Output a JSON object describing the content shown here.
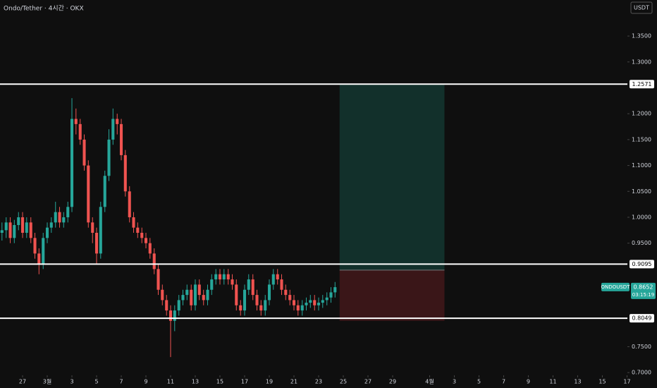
{
  "chart_data": {
    "type": "candlestick",
    "title": "Ondo/Tether · 4시간 · OKX",
    "currency": "USDT",
    "colors": {
      "up": "#26a69a",
      "down": "#ef5350"
    },
    "xlim": [
      0.17,
      51.03
    ],
    "ylim": [
      0.6948,
      1.4196
    ],
    "yticks": [
      {
        "value": 1.35,
        "label": "1.3500"
      },
      {
        "value": 1.3,
        "label": "1.3000"
      },
      {
        "value": 1.2,
        "label": "1.2000"
      },
      {
        "value": 1.15,
        "label": "1.1500"
      },
      {
        "value": 1.1,
        "label": "1.1000"
      },
      {
        "value": 1.05,
        "label": "1.0500"
      },
      {
        "value": 1.0,
        "label": "1.0000"
      },
      {
        "value": 0.95,
        "label": "0.9500"
      },
      {
        "value": 0.75,
        "label": "0.7500"
      },
      {
        "value": 0.7,
        "label": "0.7000"
      }
    ],
    "xticks": [
      {
        "value": 2,
        "label": "27"
      },
      {
        "value": 4,
        "label": "3월"
      },
      {
        "value": 6,
        "label": "3"
      },
      {
        "value": 8,
        "label": "5"
      },
      {
        "value": 10,
        "label": "7"
      },
      {
        "value": 12,
        "label": "9"
      },
      {
        "value": 14,
        "label": "11"
      },
      {
        "value": 16,
        "label": "13"
      },
      {
        "value": 18,
        "label": "15"
      },
      {
        "value": 20,
        "label": "17"
      },
      {
        "value": 22,
        "label": "19"
      },
      {
        "value": 24,
        "label": "21"
      },
      {
        "value": 26,
        "label": "23"
      },
      {
        "value": 28,
        "label": "25"
      },
      {
        "value": 30,
        "label": "27"
      },
      {
        "value": 32,
        "label": "29"
      },
      {
        "value": 35,
        "label": "4월"
      },
      {
        "value": 37,
        "label": "3"
      },
      {
        "value": 39,
        "label": "5"
      },
      {
        "value": 41,
        "label": "7"
      },
      {
        "value": 43,
        "label": "9"
      },
      {
        "value": 45,
        "label": "11"
      },
      {
        "value": 47,
        "label": "13"
      },
      {
        "value": 49,
        "label": "15"
      },
      {
        "value": 51,
        "label": "17"
      }
    ],
    "x": [
      0.33,
      0.67,
      1,
      1.33,
      1.67,
      2,
      2.33,
      2.67,
      3,
      3.33,
      3.67,
      4,
      4.33,
      4.67,
      5,
      5.33,
      5.67,
      6,
      6.33,
      6.67,
      7,
      7.33,
      7.67,
      8,
      8.33,
      8.67,
      9,
      9.33,
      9.67,
      10,
      10.33,
      10.67,
      11,
      11.33,
      11.67,
      12,
      12.33,
      12.67,
      13,
      13.33,
      13.67,
      14,
      14.33,
      14.67,
      15,
      15.33,
      15.67,
      16,
      16.33,
      16.67,
      17,
      17.33,
      17.67,
      18,
      18.33,
      18.67,
      19,
      19.33,
      19.67,
      20,
      20.33,
      20.67,
      21,
      21.33,
      21.67,
      22,
      22.33,
      22.67,
      23,
      23.33,
      23.67,
      24,
      24.33,
      24.67,
      25,
      25.33,
      25.67,
      26,
      26.33,
      26.67,
      27,
      27.33
    ],
    "open": [
      0.97,
      0.975,
      0.99,
      0.96,
      0.985,
      1.0,
      0.97,
      0.99,
      0.96,
      0.93,
      0.91,
      0.96,
      0.98,
      0.99,
      1.01,
      0.99,
      1.0,
      1.02,
      1.19,
      1.18,
      1.15,
      1.1,
      0.99,
      0.97,
      0.93,
      1.02,
      1.08,
      1.15,
      1.19,
      1.18,
      1.12,
      1.05,
      1.0,
      0.98,
      0.97,
      0.96,
      0.95,
      0.93,
      0.9,
      0.86,
      0.84,
      0.82,
      0.8,
      0.82,
      0.84,
      0.85,
      0.86,
      0.83,
      0.87,
      0.85,
      0.84,
      0.86,
      0.88,
      0.89,
      0.88,
      0.89,
      0.88,
      0.87,
      0.83,
      0.82,
      0.86,
      0.88,
      0.85,
      0.83,
      0.82,
      0.84,
      0.87,
      0.89,
      0.88,
      0.86,
      0.85,
      0.84,
      0.83,
      0.82,
      0.83,
      0.835,
      0.84,
      0.83,
      0.835,
      0.84,
      0.845,
      0.855
    ],
    "close": [
      0.975,
      0.99,
      0.96,
      0.985,
      1.0,
      0.97,
      0.99,
      0.96,
      0.93,
      0.91,
      0.96,
      0.98,
      0.99,
      1.01,
      0.99,
      1.0,
      1.02,
      1.19,
      1.18,
      1.15,
      1.1,
      0.99,
      0.97,
      0.93,
      1.02,
      1.08,
      1.15,
      1.19,
      1.18,
      1.12,
      1.05,
      1.0,
      0.98,
      0.97,
      0.96,
      0.95,
      0.93,
      0.9,
      0.86,
      0.84,
      0.82,
      0.8,
      0.82,
      0.84,
      0.85,
      0.86,
      0.83,
      0.87,
      0.85,
      0.84,
      0.86,
      0.88,
      0.89,
      0.88,
      0.89,
      0.88,
      0.87,
      0.83,
      0.82,
      0.86,
      0.88,
      0.85,
      0.83,
      0.82,
      0.84,
      0.87,
      0.89,
      0.88,
      0.86,
      0.85,
      0.84,
      0.83,
      0.82,
      0.83,
      0.835,
      0.84,
      0.83,
      0.835,
      0.84,
      0.845,
      0.855,
      0.865
    ],
    "high": [
      0.99,
      1.0,
      1.0,
      0.995,
      1.01,
      1.01,
      1.0,
      1.0,
      0.97,
      0.94,
      0.97,
      0.99,
      1.0,
      1.03,
      1.02,
      1.01,
      1.03,
      1.23,
      1.21,
      1.19,
      1.16,
      1.11,
      1.0,
      0.98,
      1.03,
      1.09,
      1.17,
      1.21,
      1.2,
      1.19,
      1.13,
      1.06,
      1.01,
      0.99,
      0.98,
      0.97,
      0.96,
      0.94,
      0.91,
      0.87,
      0.85,
      0.83,
      0.83,
      0.85,
      0.86,
      0.87,
      0.87,
      0.88,
      0.88,
      0.86,
      0.87,
      0.89,
      0.9,
      0.9,
      0.9,
      0.9,
      0.89,
      0.88,
      0.84,
      0.87,
      0.89,
      0.89,
      0.86,
      0.84,
      0.85,
      0.88,
      0.9,
      0.9,
      0.89,
      0.87,
      0.86,
      0.85,
      0.84,
      0.84,
      0.845,
      0.85,
      0.85,
      0.845,
      0.85,
      0.855,
      0.865,
      0.875
    ],
    "low": [
      0.955,
      0.96,
      0.95,
      0.95,
      0.975,
      0.96,
      0.96,
      0.95,
      0.92,
      0.89,
      0.9,
      0.95,
      0.97,
      0.98,
      0.98,
      0.98,
      0.99,
      1.01,
      1.16,
      1.14,
      1.09,
      0.98,
      0.95,
      0.91,
      0.92,
      1.01,
      1.07,
      1.14,
      1.16,
      1.11,
      1.04,
      0.99,
      0.97,
      0.96,
      0.95,
      0.94,
      0.92,
      0.89,
      0.85,
      0.83,
      0.81,
      0.73,
      0.78,
      0.81,
      0.83,
      0.84,
      0.82,
      0.82,
      0.84,
      0.83,
      0.83,
      0.85,
      0.87,
      0.87,
      0.87,
      0.87,
      0.86,
      0.82,
      0.81,
      0.81,
      0.85,
      0.84,
      0.82,
      0.81,
      0.81,
      0.83,
      0.86,
      0.87,
      0.85,
      0.84,
      0.83,
      0.82,
      0.81,
      0.81,
      0.82,
      0.825,
      0.82,
      0.82,
      0.825,
      0.83,
      0.835,
      0.845
    ],
    "levels": [
      1.2571,
      0.9095,
      0.8049
    ],
    "position": {
      "x": [
        27.7,
        36.2
      ],
      "entry": 0.898,
      "target": 1.2571,
      "stop": 0.8
    },
    "current": {
      "symbol": "ONDOUSDT",
      "price": 0.8652,
      "countdown": "03:15:19"
    }
  }
}
